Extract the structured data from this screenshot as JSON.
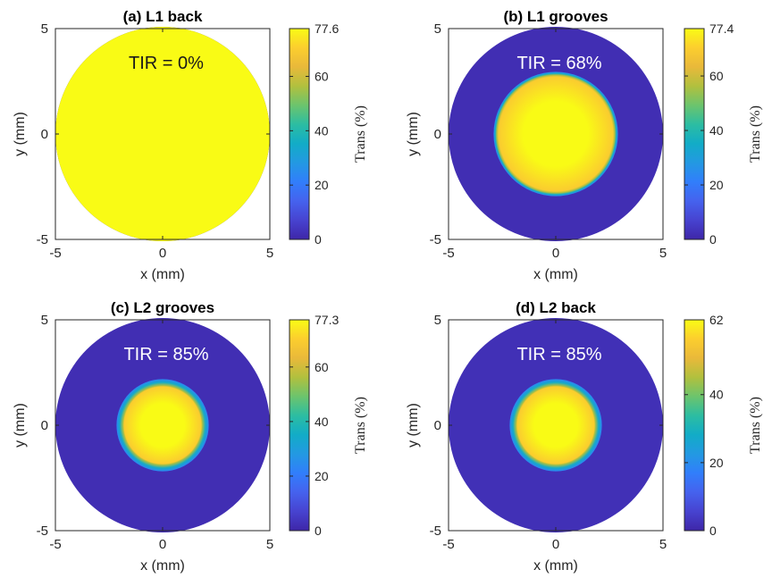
{
  "colormap": [
    "#3e26a8",
    "#4743d0",
    "#4562ee",
    "#317efb",
    "#2399e2",
    "#12acc7",
    "#2cbda2",
    "#6cc46d",
    "#b1c03e",
    "#e9b93a",
    "#fcce2e",
    "#f9fb15"
  ],
  "chart_data": [
    {
      "type": "heatmap",
      "title": "(a) L1 back",
      "xlabel": "x (mm)",
      "ylabel": "y (mm)",
      "xlim": [
        -5,
        5
      ],
      "ylim": [
        -5,
        5
      ],
      "xticks": [
        "-5",
        "0",
        "5"
      ],
      "yticks": [
        "-5",
        "0",
        "5"
      ],
      "colorbar": {
        "label": "Trans (%)",
        "min": 0,
        "max": 77.6,
        "ticks": [
          "0",
          "20",
          "40",
          "60",
          "77.6"
        ]
      },
      "annotation": "TIR =  0%",
      "aperture_radius_mm": 5,
      "background_value": 0,
      "center_value": 77.6,
      "spot_radius_mm": 5,
      "ring_width_mm": 0
    },
    {
      "type": "heatmap",
      "title": "(b) L1 grooves",
      "xlabel": "x (mm)",
      "ylabel": "y (mm)",
      "xlim": [
        -5,
        5
      ],
      "ylim": [
        -5,
        5
      ],
      "xticks": [
        "-5",
        "0",
        "5"
      ],
      "yticks": [
        "-5",
        "0",
        "5"
      ],
      "colorbar": {
        "label": "Trans (%)",
        "min": 0,
        "max": 77.4,
        "ticks": [
          "0",
          "20",
          "40",
          "60",
          "77.4"
        ]
      },
      "annotation": "TIR = 68%",
      "aperture_radius_mm": 5,
      "background_value": 2,
      "center_value": 77.4,
      "spot_radius_mm": 2.75,
      "ring_width_mm": 0.15
    },
    {
      "type": "heatmap",
      "title": "(c) L2 grooves",
      "xlabel": "x (mm)",
      "ylabel": "y (mm)",
      "xlim": [
        -5,
        5
      ],
      "ylim": [
        -5,
        5
      ],
      "xticks": [
        "-5",
        "0",
        "5"
      ],
      "yticks": [
        "-5",
        "0",
        "5"
      ],
      "colorbar": {
        "label": "Trans (%)",
        "min": 0,
        "max": 77.3,
        "ticks": [
          "0",
          "20",
          "40",
          "60",
          "77.3"
        ]
      },
      "annotation": "TIR = 85%",
      "aperture_radius_mm": 5,
      "background_value": 2,
      "center_value": 77.3,
      "spot_radius_mm": 1.85,
      "ring_width_mm": 0.3
    },
    {
      "type": "heatmap",
      "title": "(d) L2 back",
      "xlabel": "x (mm)",
      "ylabel": "y (mm)",
      "xlim": [
        -5,
        5
      ],
      "ylim": [
        -5,
        5
      ],
      "xticks": [
        "-5",
        "0",
        "5"
      ],
      "yticks": [
        "-5",
        "0",
        "5"
      ],
      "colorbar": {
        "label": "Trans (%)",
        "min": 0,
        "max": 62,
        "ticks": [
          "0",
          "20",
          "40",
          "62"
        ]
      },
      "annotation": "TIR = 85%",
      "aperture_radius_mm": 5,
      "background_value": 2,
      "center_value": 62,
      "spot_radius_mm": 1.85,
      "ring_width_mm": 0.3
    }
  ]
}
